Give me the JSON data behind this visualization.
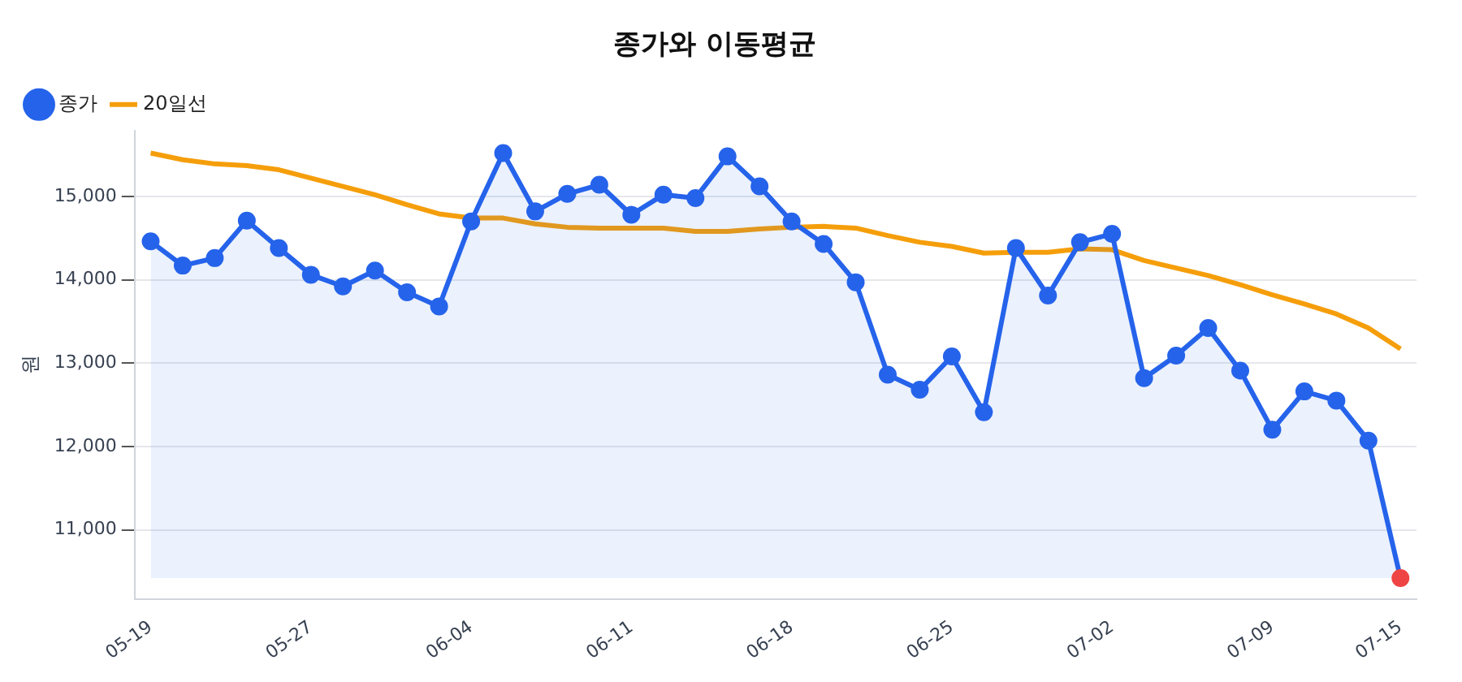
{
  "chart_data": {
    "type": "line",
    "title": "종가와 이동평균",
    "ylabel": "원",
    "categories": [
      "05-19",
      null,
      null,
      null,
      null,
      "05-27",
      null,
      null,
      null,
      null,
      "06-04",
      null,
      null,
      null,
      null,
      "06-11",
      null,
      null,
      null,
      null,
      "06-18",
      null,
      null,
      null,
      null,
      "06-25",
      null,
      null,
      null,
      null,
      "07-02",
      null,
      null,
      null,
      null,
      "07-09",
      null,
      null,
      null,
      "07-15"
    ],
    "series": [
      {
        "name": "종가",
        "type": "area",
        "marker": "circle",
        "color": "#2563eb",
        "colors": [
          "#2563eb",
          "#2563eb",
          "#2563eb",
          "#2563eb",
          "#2563eb",
          "#2563eb",
          "#2563eb",
          "#2563eb",
          "#2563eb",
          "#2563eb",
          "#2563eb",
          "#2563eb",
          "#2563eb",
          "#2563eb",
          "#2563eb",
          "#2563eb",
          "#2563eb",
          "#2563eb",
          "#2563eb",
          "#2563eb",
          "#2563eb",
          "#2563eb",
          "#2563eb",
          "#2563eb",
          "#2563eb",
          "#2563eb",
          "#2563eb",
          "#2563eb",
          "#2563eb",
          "#2563eb",
          "#2563eb",
          "#2563eb",
          "#2563eb",
          "#2563eb",
          "#2563eb",
          "#2563eb",
          "#2563eb",
          "#2563eb",
          "#2563eb",
          "#ef4444"
        ],
        "values": [
          14460,
          14170,
          14260,
          14710,
          14380,
          14060,
          13920,
          14110,
          13850,
          13680,
          14700,
          15520,
          14820,
          15030,
          15140,
          14780,
          15020,
          14980,
          15480,
          15120,
          14700,
          14430,
          13970,
          12860,
          12680,
          13080,
          12410,
          14380,
          13810,
          14450,
          14550,
          12820,
          13090,
          13420,
          12910,
          12200,
          12660,
          12550,
          12070,
          10420
        ]
      },
      {
        "name": "20일선",
        "type": "line",
        "marker": "none",
        "color": "#f59e0b",
        "values": [
          15520,
          15440,
          15390,
          15370,
          15320,
          15220,
          15120,
          15020,
          14900,
          14790,
          14740,
          14740,
          14670,
          14630,
          14620,
          14620,
          14620,
          14580,
          14580,
          14610,
          14630,
          14640,
          14620,
          14530,
          14450,
          14400,
          14320,
          14330,
          14330,
          14370,
          14360,
          14230,
          14140,
          14050,
          13940,
          13820,
          13710,
          13590,
          13420,
          13170
        ]
      }
    ],
    "ylim": [
      10170,
      15790
    ],
    "yticks": [
      {
        "value": 11000,
        "label": "11,000"
      },
      {
        "value": 12000,
        "label": "12,000"
      },
      {
        "value": 13000,
        "label": "13,000"
      },
      {
        "value": 14000,
        "label": "14,000"
      },
      {
        "value": 15000,
        "label": "15,000"
      }
    ],
    "grid": "y",
    "legend": "top left"
  }
}
